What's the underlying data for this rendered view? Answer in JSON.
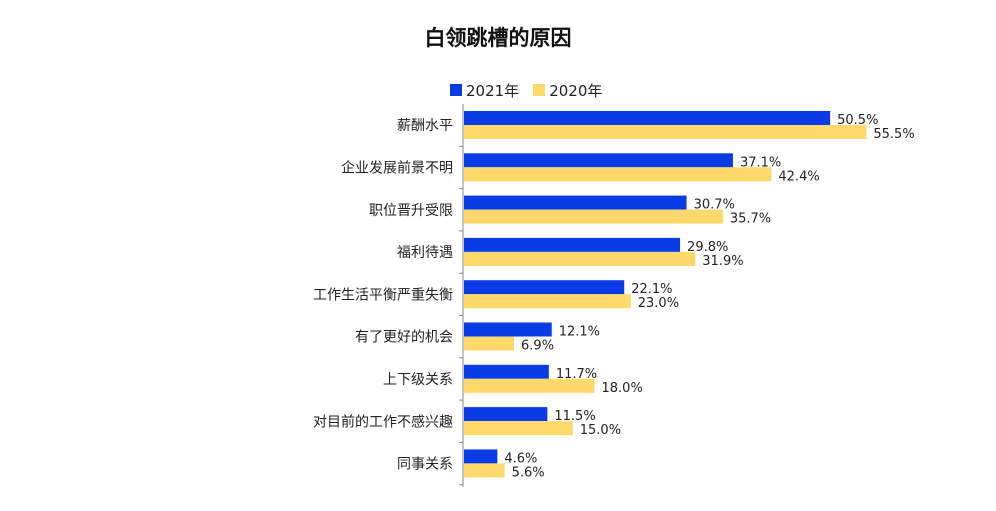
{
  "chart_data": {
    "type": "bar",
    "orientation": "horizontal",
    "title": "白领跳槽的原因",
    "categories": [
      "薪酬水平",
      "企业发展前景不明",
      "职位晋升受限",
      "福利待遇",
      "工作生活平衡严重失衡",
      "有了更好的机会",
      "上下级关系",
      "对目前的工作不感兴趣",
      "同事关系"
    ],
    "series": [
      {
        "name": "2021年",
        "color": "#0a3ce6",
        "values": [
          50.5,
          37.1,
          30.7,
          29.8,
          22.1,
          12.1,
          11.7,
          11.5,
          4.6
        ]
      },
      {
        "name": "2020年",
        "color": "#fdd86a",
        "values": [
          55.5,
          42.4,
          35.7,
          31.9,
          23.0,
          6.9,
          18.0,
          15.0,
          5.6
        ]
      }
    ],
    "data_labels": [
      [
        "50.5%",
        "37.1%",
        "30.7%",
        "29.8%",
        "22.1%",
        "12.1%",
        "11.7%",
        "11.5%",
        "4.6%"
      ],
      [
        "55.5%",
        "42.4%",
        "35.7%",
        "31.9%",
        "23.0%",
        "6.9%",
        "18.0%",
        "15.0%",
        "5.6%"
      ]
    ],
    "xlim": [
      0,
      60
    ],
    "legend_position": "top",
    "grid": false
  }
}
